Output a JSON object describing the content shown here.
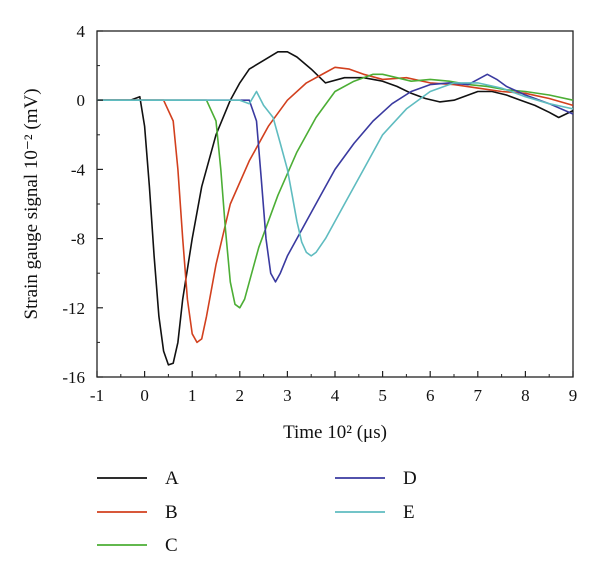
{
  "chart_data": {
    "type": "line",
    "title": "",
    "xlabel": "Time 10² (μs)",
    "ylabel": "Strain gauge signal 10⁻² (mV)",
    "xlim": [
      -1,
      9
    ],
    "ylim": [
      -16,
      4
    ],
    "xticks": [
      -1,
      0,
      1,
      2,
      3,
      4,
      5,
      6,
      7,
      8,
      9
    ],
    "yticks": [
      -16,
      -12,
      -8,
      -4,
      0,
      4
    ],
    "grid": false,
    "legend_position": "bottom",
    "series": [
      {
        "name": "A",
        "color": "#111111",
        "x": [
          -1,
          -0.3,
          -0.1,
          0,
          0.1,
          0.2,
          0.3,
          0.4,
          0.5,
          0.6,
          0.7,
          0.8,
          1.0,
          1.2,
          1.5,
          1.8,
          2.0,
          2.2,
          2.5,
          2.8,
          3.0,
          3.2,
          3.5,
          3.8,
          4.2,
          4.6,
          5.0,
          5.3,
          5.6,
          5.9,
          6.2,
          6.5,
          6.8,
          7.0,
          7.3,
          7.6,
          7.9,
          8.2,
          8.5,
          8.7,
          9.0
        ],
        "y": [
          0,
          0,
          0.2,
          -1.5,
          -5,
          -9,
          -12.5,
          -14.5,
          -15.3,
          -15.2,
          -14,
          -11.5,
          -8,
          -5,
          -2,
          0,
          1,
          1.8,
          2.3,
          2.8,
          2.8,
          2.5,
          1.8,
          1.0,
          1.3,
          1.3,
          1.1,
          0.8,
          0.4,
          0.1,
          -0.1,
          0,
          0.3,
          0.5,
          0.5,
          0.3,
          0,
          -0.3,
          -0.7,
          -1.0,
          -0.6
        ]
      },
      {
        "name": "B",
        "color": "#d2401e",
        "x": [
          -1,
          0.4,
          0.6,
          0.7,
          0.8,
          0.9,
          1.0,
          1.1,
          1.2,
          1.3,
          1.5,
          1.8,
          2.2,
          2.6,
          3.0,
          3.4,
          3.8,
          4.0,
          4.3,
          4.6,
          5.0,
          5.5,
          6.0,
          6.5,
          7.0,
          7.5,
          8.0,
          8.5,
          9.0
        ],
        "y": [
          0,
          0,
          -1.2,
          -4,
          -8,
          -11.5,
          -13.5,
          -14,
          -13.8,
          -12.5,
          -9.5,
          -6,
          -3.5,
          -1.5,
          0,
          1.0,
          1.6,
          1.9,
          1.8,
          1.5,
          1.2,
          1.3,
          1.0,
          0.9,
          0.7,
          0.5,
          0.4,
          0.1,
          -0.3
        ]
      },
      {
        "name": "C",
        "color": "#4cae35",
        "x": [
          -1,
          1.3,
          1.5,
          1.6,
          1.7,
          1.8,
          1.9,
          2.0,
          2.1,
          2.2,
          2.4,
          2.8,
          3.2,
          3.6,
          4.0,
          4.4,
          4.8,
          5.0,
          5.3,
          5.6,
          6.0,
          6.4,
          6.8,
          7.2,
          7.6,
          8.0,
          8.5,
          9.0
        ],
        "y": [
          0,
          0,
          -1.2,
          -4,
          -7.5,
          -10.5,
          -11.8,
          -12,
          -11.5,
          -10.5,
          -8.5,
          -5.5,
          -3,
          -1,
          0.5,
          1.1,
          1.5,
          1.5,
          1.3,
          1.1,
          1.2,
          1.1,
          0.9,
          0.8,
          0.6,
          0.5,
          0.3,
          0
        ]
      },
      {
        "name": "D",
        "color": "#3a3aa0",
        "x": [
          -1,
          2.2,
          2.35,
          2.45,
          2.55,
          2.65,
          2.75,
          2.85,
          3.0,
          3.2,
          3.4,
          3.7,
          4.0,
          4.4,
          4.8,
          5.2,
          5.6,
          6.0,
          6.4,
          6.8,
          7.0,
          7.2,
          7.4,
          7.6,
          8.0,
          8.5,
          9.0
        ],
        "y": [
          0,
          0,
          -1.2,
          -4.5,
          -8,
          -10,
          -10.5,
          -10,
          -9,
          -8,
          -7,
          -5.5,
          -4,
          -2.5,
          -1.2,
          -0.2,
          0.5,
          0.9,
          1.0,
          0.9,
          1.2,
          1.5,
          1.2,
          0.8,
          0.3,
          -0.2,
          -0.8
        ]
      },
      {
        "name": "E",
        "color": "#5fbcc0",
        "x": [
          -1,
          2.0,
          2.2,
          2.35,
          2.5,
          2.7,
          2.85,
          3.0,
          3.1,
          3.2,
          3.3,
          3.4,
          3.5,
          3.6,
          3.8,
          4.2,
          4.6,
          5.0,
          5.5,
          6.0,
          6.5,
          7.0,
          7.5,
          8.0,
          8.5,
          9.0
        ],
        "y": [
          0,
          0,
          -0.2,
          0.5,
          -0.3,
          -1,
          -2.5,
          -4,
          -5.5,
          -7,
          -8.2,
          -8.8,
          -9,
          -8.8,
          -8,
          -6,
          -4,
          -2,
          -0.5,
          0.5,
          1.0,
          1.0,
          0.7,
          0.2,
          -0.2,
          -0.5
        ]
      }
    ]
  }
}
